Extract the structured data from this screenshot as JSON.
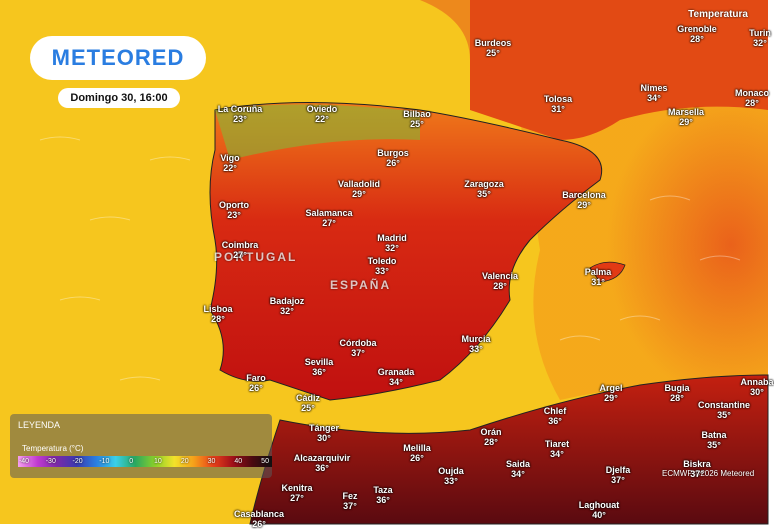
{
  "header": {
    "logo": "METEORED",
    "datetime": "Domingo 30, 16:00",
    "layer": "Temperatura"
  },
  "countries": [
    "PORTUGAL",
    "ESPAÑA"
  ],
  "cities": [
    {
      "name": "Burdeos",
      "temp": "25°"
    },
    {
      "name": "Grenoble",
      "temp": "28°"
    },
    {
      "name": "Turin",
      "temp": "32°"
    },
    {
      "name": "La Coruña",
      "temp": "23°"
    },
    {
      "name": "Oviedo",
      "temp": "22°"
    },
    {
      "name": "Bilbao",
      "temp": "25°"
    },
    {
      "name": "Tolosa",
      "temp": "31°"
    },
    {
      "name": "Nimes",
      "temp": "34°"
    },
    {
      "name": "Marsella",
      "temp": "29°"
    },
    {
      "name": "Monaco",
      "temp": "28°"
    },
    {
      "name": "Vigo",
      "temp": "22°"
    },
    {
      "name": "Burgos",
      "temp": "26°"
    },
    {
      "name": "Valladolid",
      "temp": "29°"
    },
    {
      "name": "Zaragoza",
      "temp": "35°"
    },
    {
      "name": "Barcelona",
      "temp": "29°"
    },
    {
      "name": "Oporto",
      "temp": "23°"
    },
    {
      "name": "Salamanca",
      "temp": "27°"
    },
    {
      "name": "Coimbra",
      "temp": "27°"
    },
    {
      "name": "Madrid",
      "temp": "32°"
    },
    {
      "name": "Toledo",
      "temp": "33°"
    },
    {
      "name": "Valencia",
      "temp": "28°"
    },
    {
      "name": "Palma",
      "temp": "31°"
    },
    {
      "name": "Lisboa",
      "temp": "28°"
    },
    {
      "name": "Badajoz",
      "temp": "32°"
    },
    {
      "name": "Córdoba",
      "temp": "37°"
    },
    {
      "name": "Murcia",
      "temp": "33°"
    },
    {
      "name": "Sevilla",
      "temp": "36°"
    },
    {
      "name": "Granada",
      "temp": "34°"
    },
    {
      "name": "Faro",
      "temp": "26°"
    },
    {
      "name": "Cádiz",
      "temp": "25°"
    },
    {
      "name": "Argel",
      "temp": "29°"
    },
    {
      "name": "Bugia",
      "temp": "28°"
    },
    {
      "name": "Annaba",
      "temp": "30°"
    },
    {
      "name": "Constantine",
      "temp": "35°"
    },
    {
      "name": "Chlef",
      "temp": "36°"
    },
    {
      "name": "Orán",
      "temp": "28°"
    },
    {
      "name": "Batna",
      "temp": "35°"
    },
    {
      "name": "Tánger",
      "temp": "30°"
    },
    {
      "name": "Tiaret",
      "temp": "34°"
    },
    {
      "name": "Melilla",
      "temp": "26°"
    },
    {
      "name": "Biskra",
      "temp": "37°"
    },
    {
      "name": "Alcazarquivir",
      "temp": "36°"
    },
    {
      "name": "Oujda",
      "temp": "33°"
    },
    {
      "name": "Saida",
      "temp": "34°"
    },
    {
      "name": "Djelfa",
      "temp": "37°"
    },
    {
      "name": "Kenitra",
      "temp": "27°"
    },
    {
      "name": "Fez",
      "temp": "37°"
    },
    {
      "name": "Taza",
      "temp": "36°"
    },
    {
      "name": "Laghouat",
      "temp": "40°"
    },
    {
      "name": "Casablanca",
      "temp": "26°"
    }
  ],
  "legend": {
    "title": "LEYENDA",
    "subtitle": "Temperatura (°C)",
    "ticks": [
      "-40",
      "-30",
      "-20",
      "-10",
      "0",
      "10",
      "20",
      "30",
      "40",
      "50"
    ]
  },
  "credit": "ECMWF ©2026 Meteored"
}
